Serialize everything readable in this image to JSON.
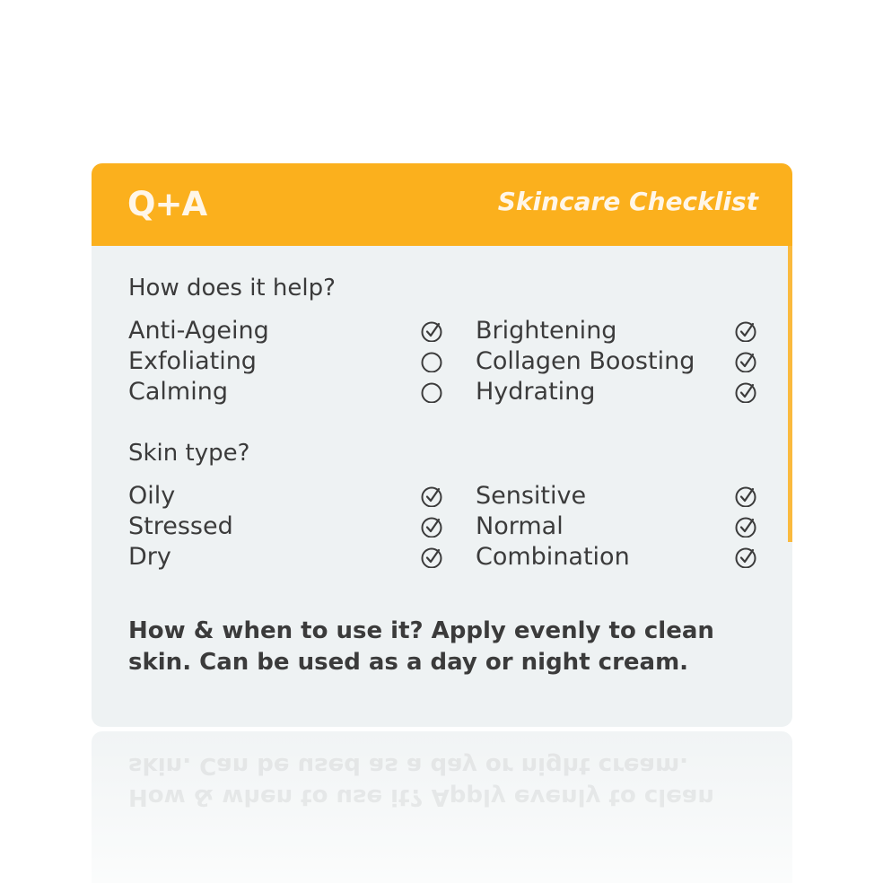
{
  "header": {
    "logo": "Q+A",
    "title": "Skincare Checklist"
  },
  "colors": {
    "accent": "#fbb01d",
    "text": "#3b3b3b",
    "card": "#eef2f3"
  },
  "sections": [
    {
      "heading": "How does it help?",
      "items": [
        {
          "label": "Anti-Ageing",
          "checked": true
        },
        {
          "label": "Exfoliating",
          "checked": false
        },
        {
          "label": "Calming",
          "checked": false
        },
        {
          "label": "Brightening",
          "checked": true
        },
        {
          "label": "Collagen Boosting",
          "checked": true
        },
        {
          "label": "Hydrating",
          "checked": true
        }
      ]
    },
    {
      "heading": "Skin type?",
      "items": [
        {
          "label": "Oily",
          "checked": true
        },
        {
          "label": "Stressed",
          "checked": true
        },
        {
          "label": "Dry",
          "checked": true
        },
        {
          "label": "Sensitive",
          "checked": true
        },
        {
          "label": "Normal",
          "checked": true
        },
        {
          "label": "Combination",
          "checked": true
        }
      ]
    }
  ],
  "usage": "How & when to use it? Apply evenly to clean skin. Can be used as a day or night cream."
}
